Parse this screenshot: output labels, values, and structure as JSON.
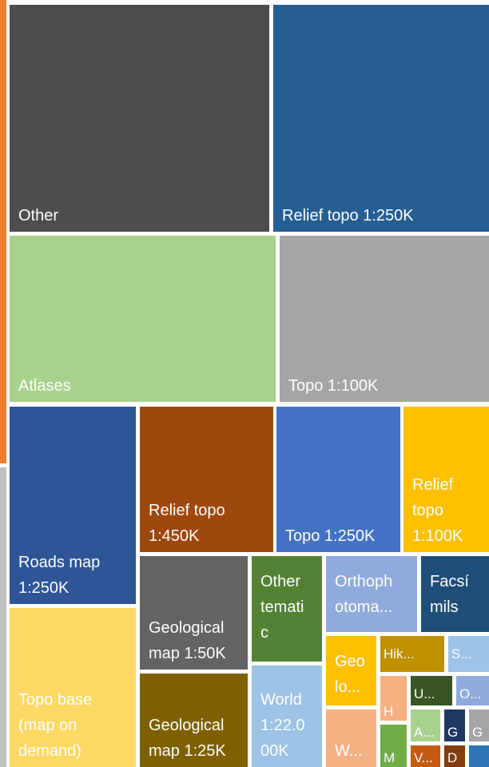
{
  "chart_data": {
    "type": "treemap",
    "tiles": [
      {
        "label": "Other",
        "value": 95000,
        "color": "#4d4d4d"
      },
      {
        "label": "Relief topo 1:250K",
        "value": 78000,
        "color": "#255e91"
      },
      {
        "label": "Atlases",
        "value": 72000,
        "color": "#a9d18e"
      },
      {
        "label": "Topo 1:100K",
        "value": 57000,
        "color": "#a5a5a5"
      },
      {
        "label": "Roads map 1:250K",
        "value": 36000,
        "color": "#2f5597"
      },
      {
        "label": "Relief topo 1:450K",
        "value": 27000,
        "color": "#9e480e"
      },
      {
        "label": "Topo 1:250K",
        "value": 31000,
        "color": "#4472c4"
      },
      {
        "label": "Relief topo 1:100K",
        "value": 17000,
        "color": "#ffc000"
      },
      {
        "label": "Topo base (map on demand)",
        "value": 31000,
        "color": "#ffd966"
      },
      {
        "label": "Geological map 1:50K",
        "value": 17000,
        "color": "#636363"
      },
      {
        "label": "Geological map 1:25K",
        "value": 17000,
        "color": "#7f6000"
      },
      {
        "label": "Other tematic",
        "value": 10000,
        "color": "#548235"
      },
      {
        "label": "World 1:22.000K",
        "value": 15000,
        "color": "#9dc3e6"
      },
      {
        "label": "Orthophotomaps",
        "value": 9000,
        "color": "#8faadc"
      },
      {
        "label": "Facsímils",
        "value": 7000,
        "color": "#1f4e79"
      },
      {
        "label": "Geological",
        "value": 4000,
        "color": "#ffc000"
      },
      {
        "label": "Hiking",
        "value": 3000,
        "color": "#bf9000"
      },
      {
        "label": "S",
        "value": 2000,
        "color": "#9dc3e6"
      },
      {
        "label": "W",
        "value": 3500,
        "color": "#f4b183"
      },
      {
        "label": "H",
        "value": 1500,
        "color": "#f4b183"
      },
      {
        "label": "U",
        "value": 1400,
        "color": "#375623"
      },
      {
        "label": "O",
        "value": 1200,
        "color": "#8faadc"
      },
      {
        "label": "M",
        "value": 1100,
        "color": "#70ad47"
      },
      {
        "label": "A",
        "value": 1000,
        "color": "#a9d18e"
      },
      {
        "label": "G",
        "value": 700,
        "color": "#203864"
      },
      {
        "label": "G",
        "value": 700,
        "color": "#a5a5a5"
      },
      {
        "label": "V",
        "value": 600,
        "color": "#c55a11"
      },
      {
        "label": "D",
        "value": 500,
        "color": "#843c0c"
      },
      {
        "label": "",
        "value": 300,
        "color": "#2e75b6"
      }
    ],
    "left_edge_colors": [
      "#ed7d31",
      "#bfbfbf"
    ]
  },
  "display_labels": [
    [
      "Other"
    ],
    [
      "Relief topo 1:250K"
    ],
    [
      "Atlases"
    ],
    [
      "Topo 1:100K"
    ],
    [
      "Roads map",
      "1:250K"
    ],
    [
      "Relief topo",
      "1:450K"
    ],
    [
      "Topo 1:250K"
    ],
    [
      "Relief",
      "topo",
      "1:100K"
    ],
    [
      "Topo base",
      "(map on",
      "demand)"
    ],
    [
      "Geological",
      "map 1:50K"
    ],
    [
      "Geological",
      "map 1:25K"
    ],
    [
      "Other",
      "temati",
      "c"
    ],
    [
      "World",
      "1:22.0",
      "00K"
    ],
    [
      "Orthoph",
      "otoma..."
    ],
    [
      "Facsí",
      "mils"
    ],
    [
      "Geo",
      "lo..."
    ],
    [
      "Hik..."
    ],
    [
      "S..."
    ],
    [
      "W..."
    ],
    [
      "H"
    ],
    [
      "U..."
    ],
    [
      "O..."
    ],
    [
      "M"
    ],
    [
      "A..."
    ],
    [
      "G"
    ],
    [
      "G"
    ],
    [
      "V..."
    ],
    [
      "D"
    ],
    []
  ]
}
